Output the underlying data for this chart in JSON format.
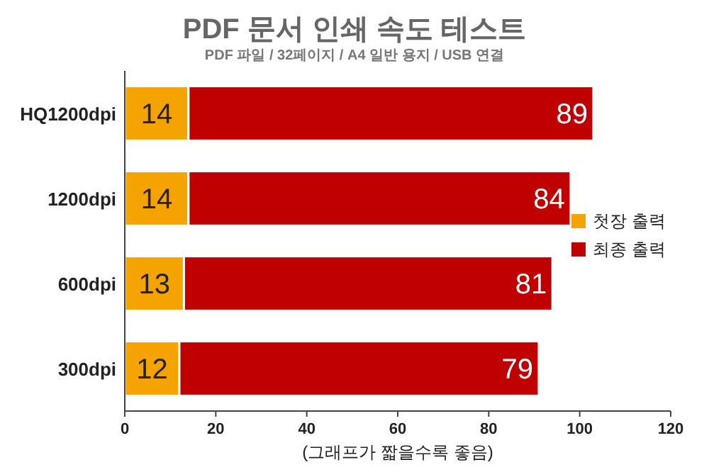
{
  "chart_data": {
    "type": "bar",
    "orientation": "horizontal",
    "stacked": true,
    "title": "PDF 문서 인쇄 속도 테스트",
    "subtitle": "PDF 파일 / 32페이지 / A4 일반 용지 / USB 연결",
    "xlabel": "(그래프가 짧을수록 좋음)",
    "categories": [
      "HQ1200dpi",
      "1200dpi",
      "600dpi",
      "300dpi"
    ],
    "series": [
      {
        "name": "첫장 출력",
        "color": "#f5a300",
        "values": [
          14,
          14,
          13,
          12
        ]
      },
      {
        "name": "최종 출력",
        "color": "#c00000",
        "values": [
          89,
          84,
          81,
          79
        ]
      }
    ],
    "xlim": [
      0,
      120
    ],
    "xticks": [
      0,
      20,
      40,
      60,
      80,
      100,
      120
    ],
    "data_labels": true,
    "legend": "right",
    "grid": false
  }
}
